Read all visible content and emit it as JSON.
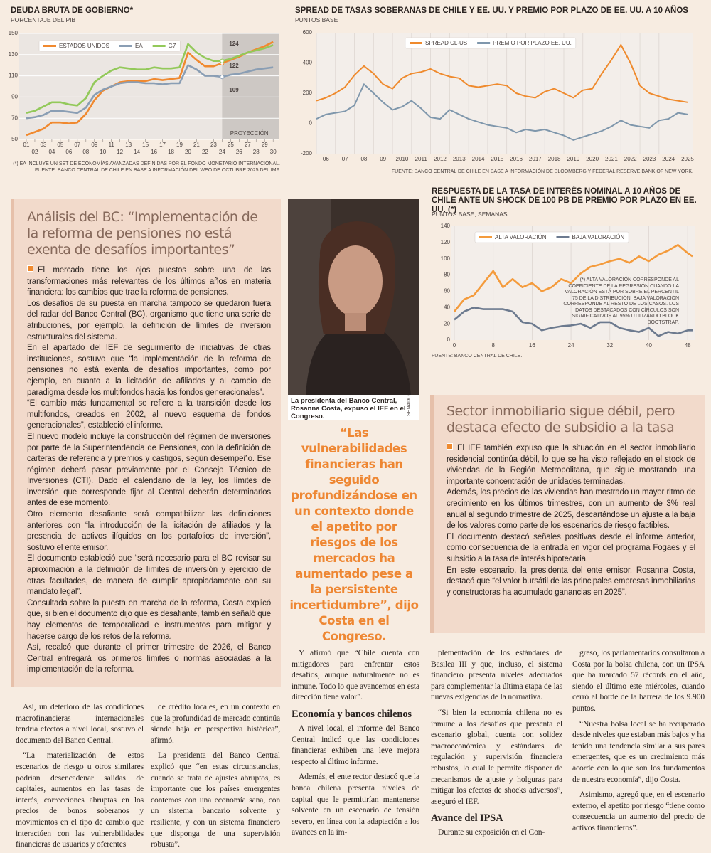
{
  "charts": [
    {
      "type": "line",
      "title": "DEUDA BRUTA DE GOBIERNO*",
      "subtitle": "PORCENTAJE DEL PIB",
      "x": [
        2001,
        2002,
        2003,
        2004,
        2005,
        2006,
        2007,
        2008,
        2009,
        2010,
        2011,
        2012,
        2013,
        2014,
        2015,
        2016,
        2017,
        2018,
        2019,
        2020,
        2021,
        2022,
        2023,
        2024,
        2025,
        2026,
        2027,
        2028,
        2029,
        2030
      ],
      "series": [
        {
          "name": "ESTADOS UNIDOS",
          "color": "#f0892f",
          "values": [
            54,
            57,
            60,
            66,
            66,
            65,
            66,
            74,
            87,
            96,
            100,
            104,
            105,
            105,
            105,
            107,
            106,
            107,
            108,
            132,
            125,
            119,
            119,
            122,
            125,
            128,
            132,
            135,
            138,
            142
          ],
          "value_labels": [
            null,
            null,
            null,
            null,
            null,
            null,
            null,
            null,
            null,
            null,
            null,
            null,
            null,
            null,
            null,
            null,
            null,
            null,
            null,
            null,
            null,
            null,
            null,
            "122",
            null,
            null,
            null,
            null,
            null,
            null
          ]
        },
        {
          "name": "EA",
          "color": "#8a9eb4",
          "values": [
            70,
            71,
            73,
            77,
            77,
            76,
            75,
            80,
            92,
            97,
            100,
            103,
            104,
            104,
            103,
            103,
            102,
            103,
            103,
            120,
            116,
            110,
            110,
            109,
            111,
            112,
            114,
            116,
            117,
            118
          ],
          "value_labels": [
            null,
            null,
            null,
            null,
            null,
            null,
            null,
            null,
            null,
            null,
            null,
            null,
            null,
            null,
            null,
            null,
            null,
            null,
            null,
            null,
            null,
            null,
            null,
            "109",
            null,
            null,
            null,
            null,
            null,
            null
          ]
        },
        {
          "name": "G7",
          "color": "#93c95a",
          "values": [
            75,
            77,
            81,
            85,
            85,
            83,
            82,
            89,
            104,
            110,
            115,
            118,
            117,
            116,
            116,
            118,
            117,
            117,
            118,
            140,
            132,
            127,
            124,
            124,
            126,
            129,
            132,
            134,
            136,
            139
          ],
          "value_labels": [
            null,
            null,
            null,
            null,
            null,
            null,
            null,
            null,
            null,
            null,
            null,
            null,
            null,
            null,
            null,
            null,
            null,
            null,
            null,
            null,
            null,
            null,
            null,
            "124",
            null,
            null,
            null,
            null,
            null,
            null
          ]
        }
      ],
      "xlim": [
        2000.5,
        2030.4
      ],
      "xticks": [
        {
          "value": 2001,
          "label": "01"
        },
        {
          "value": 2002,
          "label": "02"
        },
        {
          "value": 2003,
          "label": "03"
        },
        {
          "value": 2004,
          "label": "04"
        },
        {
          "value": 2005,
          "label": "05"
        },
        {
          "value": 2006,
          "label": "06"
        },
        {
          "value": 2007,
          "label": "07"
        },
        {
          "value": 2008,
          "label": "08"
        },
        {
          "value": 2009,
          "label": "09"
        },
        {
          "value": 2010,
          "label": "10"
        },
        {
          "value": 2011,
          "label": "11"
        },
        {
          "value": 2012,
          "label": "12"
        },
        {
          "value": 2013,
          "label": "13"
        },
        {
          "value": 2014,
          "label": "14"
        },
        {
          "value": 2015,
          "label": "15"
        },
        {
          "value": 2016,
          "label": "16"
        },
        {
          "value": 2017,
          "label": "17"
        },
        {
          "value": 2018,
          "label": "18"
        },
        {
          "value": 2019,
          "label": "19"
        },
        {
          "value": 2020,
          "label": "20"
        },
        {
          "value": 2021,
          "label": "21"
        },
        {
          "value": 2022,
          "label": "22"
        },
        {
          "value": 2023,
          "label": "23"
        },
        {
          "value": 2024,
          "label": "24"
        },
        {
          "value": 2025,
          "label": "25"
        },
        {
          "value": 2026,
          "label": "26"
        },
        {
          "value": 2027,
          "label": "27"
        },
        {
          "value": 2028,
          "label": "28"
        },
        {
          "value": 2029,
          "label": "29"
        },
        {
          "value": 2030,
          "label": "30"
        }
      ],
      "ylim": [
        50,
        150
      ],
      "yticks": [
        50,
        70,
        90,
        110,
        130,
        150
      ],
      "grid": "y",
      "projection": {
        "label": "PROYECCIÓN",
        "from": 2024
      },
      "footnote": "(*) EA INCLUYE UN SET DE ECONOMÍAS AVANZADAS DEFINIDAS POR EL FONDO MONETARIO INTERNACIONAL.",
      "source": "FUENTE: BANCO CENTRAL DE CHILE EN BASE A INFORMACIÓN DEL WEO DE OCTUBRE 2025 DEL IMF."
    },
    {
      "type": "line",
      "title": "SPREAD DE TASAS SOBERANAS DE CHILE Y EE. UU. Y PREMIO POR PLAZO DE EE. UU. A 10 AÑOS",
      "subtitle": "PUNTOS BASE",
      "x": [
        2006,
        2006.5,
        2007,
        2007.5,
        2008,
        2008.5,
        2009,
        2009.5,
        2010,
        2010.5,
        2011,
        2011.5,
        2012,
        2012.5,
        2013,
        2013.5,
        2014,
        2014.5,
        2015,
        2015.5,
        2016,
        2016.5,
        2017,
        2017.5,
        2018,
        2018.5,
        2019,
        2019.5,
        2020,
        2020.5,
        2021,
        2021.5,
        2022,
        2022.5,
        2023,
        2023.5,
        2024,
        2024.5,
        2025,
        2025.5
      ],
      "series": [
        {
          "name": "SPREAD CL-US",
          "color": "#ef8a2d",
          "values": [
            150,
            170,
            200,
            240,
            320,
            380,
            330,
            260,
            230,
            300,
            330,
            340,
            360,
            330,
            310,
            300,
            250,
            240,
            250,
            260,
            250,
            200,
            180,
            170,
            210,
            230,
            200,
            170,
            220,
            230,
            330,
            420,
            520,
            400,
            250,
            200,
            180,
            160,
            150,
            140
          ]
        },
        {
          "name": "PREMIO POR PLAZO EE. UU.",
          "color": "#7f97ac",
          "values": [
            30,
            60,
            70,
            80,
            120,
            260,
            200,
            140,
            90,
            110,
            150,
            100,
            40,
            30,
            90,
            60,
            30,
            10,
            -10,
            -20,
            -30,
            -60,
            -40,
            -50,
            -40,
            -60,
            -80,
            -110,
            -90,
            -70,
            -50,
            -20,
            20,
            -10,
            -20,
            -30,
            20,
            30,
            70,
            60
          ]
        }
      ],
      "xlim": [
        2006,
        2025.8
      ],
      "xticks": [
        {
          "value": 2006,
          "label": "06"
        },
        {
          "value": 2007,
          "label": "07"
        },
        {
          "value": 2008,
          "label": "08"
        },
        {
          "value": 2009,
          "label": "09"
        },
        2010,
        2011,
        2012,
        2013,
        2014,
        2015,
        2016,
        2017,
        2018,
        2019,
        2020,
        2021,
        2022,
        2023,
        2024,
        2025
      ],
      "ylim": [
        -200,
        600
      ],
      "yticks": [
        -200,
        0,
        200,
        400,
        600
      ],
      "grid": "x",
      "source": "FUENTE: BANCO CENTRAL DE CHILE EN BASE A INFORMACIÓN DE BLOOMBERG Y FEDERAL RESERVE BANK OF NEW YORK."
    },
    {
      "type": "line",
      "title": "RESPUESTA DE LA TASA DE INTERÉS NOMINAL A 10 AÑOS DE CHILE ANTE UN SHOCK DE 100 PB DE PREMIO POR PLAZO EN EE. UU. (*)",
      "subtitle": "PUNTOS BASE, SEMANAS",
      "x": [
        0,
        2,
        4,
        6,
        8,
        10,
        12,
        14,
        16,
        18,
        20,
        22,
        24,
        26,
        28,
        30,
        32,
        34,
        36,
        38,
        40,
        42,
        44,
        46,
        48,
        49
      ],
      "series": [
        {
          "name": "ALTA VALORACIÓN",
          "color": "#f49b3c",
          "values": [
            35,
            50,
            55,
            70,
            85,
            65,
            75,
            65,
            70,
            60,
            65,
            75,
            70,
            82,
            90,
            93,
            97,
            100,
            95,
            103,
            97,
            105,
            110,
            117,
            107,
            103
          ]
        },
        {
          "name": "BAJA VALORACIÓN",
          "color": "#6c7a8f",
          "values": [
            25,
            35,
            40,
            38,
            38,
            38,
            35,
            22,
            20,
            12,
            15,
            17,
            18,
            20,
            15,
            22,
            22,
            15,
            12,
            10,
            15,
            5,
            10,
            8,
            12,
            12
          ]
        }
      ],
      "xlim": [
        0,
        49
      ],
      "xticks": [
        0,
        8,
        16,
        24,
        32,
        40,
        48
      ],
      "ylim": [
        0,
        140
      ],
      "yticks": [
        0,
        20,
        40,
        60,
        80,
        100,
        120,
        140
      ],
      "grid": "x",
      "note": "(*) ALTA VALORACIÓN CORRESPONDE AL COEFICIENTE DE LA REGRESIÓN CUANDO LA VALORACIÓN ESTÁ POR SOBRE EL PERCENTIL 75 DE LA DISTRIBUCIÓN. BAJA VALORACIÓN CORRESPONDE AL RESTO DE LOS CASOS. LOS DATOS DESTACADOS CON CÍRCULOS SON SIGNIFICATIVOS AL 95% UTILIZANDO BLOCK BOOTSTRAP.",
      "source": "FUENTE: BANCO CENTRAL DE CHILE."
    }
  ],
  "article_pensiones": {
    "title": "Análisis del BC: “Implementación de la reforma de pensiones no está exenta de desafíos importantes”",
    "paragraphs": [
      "El mercado tiene los ojos puestos sobre una de las transformaciones más relevantes de los últimos años en materia financiera: los cambios que trae la reforma de pensiones.",
      "Los desafíos de su puesta en marcha tampoco se quedaron fuera del radar del Banco Central (BC), organismo que tiene una serie de atribuciones, por ejemplo, la definición de límites de inversión estructurales del sistema.",
      "En el apartado del IEF de seguimiento de iniciativas de otras instituciones, sostuvo que “la implementación de la reforma de pensiones no está exenta de desafíos importantes, como por ejemplo, en cuanto a la licitación de afiliados y al cambio de paradigma desde los multifondos hacia los fondos generacionales”.",
      "“El cambio más fundamental se refiere a la transición desde los multifondos, creados en 2002, al nuevo esquema de fondos generacionales”, estableció el informe.",
      "El nuevo modelo incluye la construcción del régimen de inversiones por parte de la Superintendencia de Pensiones, con la definición de carteras de referencia y premios y castigos, según desempeño. Ese régimen deberá pasar previamente por el Consejo Técnico de Inversiones (CTI). Dado el calendario de la ley, los límites de inversión que corresponde fijar al Central deberán determinarlos antes de ese momento.",
      "Otro elemento desafiante será compatibilizar las definiciones anteriores con “la introducción de la licitación de afiliados y la presencia de activos ilíquidos en los portafolios de inversión”, sostuvo el ente emisor.",
      "El documento estableció que “será necesario para el BC revisar su aproximación a la definición de límites de inversión y ejercicio de otras facultades, de manera de cumplir apropiadamente con su mandato legal”.",
      "Consultada sobre la puesta en marcha de la reforma, Costa explicó que, si bien el documento dijo que es desafiante, también señaló que hay elementos de temporalidad e instrumentos para mitigar y hacerse cargo de los retos de la reforma.",
      "Así, recalcó que durante el primer trimestre de 2026, el Banco Central entregará los primeros límites o normas asociadas a la implementación de la reforma."
    ]
  },
  "photo": {
    "caption": "La presidenta del Banco Central, Rosanna Costa, expuso el IEF en el Congreso.",
    "credit": "SENADO"
  },
  "quote": "“Las vulnerabilidades financieras han seguido profundizándose en un contexto donde el apetito por riesgos de los mercados ha aumentado pese a la persistente incertidumbre”, dijo Costa en el Congreso.",
  "article_inmobiliario": {
    "title": "Sector inmobiliario sigue débil, pero destaca efecto de subsidio a la tasa",
    "paragraphs": [
      "El IEF también expuso que la situación en el sector inmobiliario residencial continúa débil, lo que se ha visto reflejado en el stock de viviendas de la Región Metropolitana, que sigue mostrando una importante concentración de unidades terminadas.",
      "Además, los precios de las viviendas han mostrado un mayor ritmo de crecimiento en los últimos trimestres, con un aumento de 3% real anual al segundo trimestre de 2025, descartándose un ajuste a la baja de los valores como parte de los escenarios de riesgo factibles.",
      "El documento destacó señales positivas desde el informe anterior, como consecuencia de la entrada en vigor del programa Fogaes y el subsidio a la tasa de interés hipotecaria.",
      "En este escenario, la presidenta del ente emisor, Rosanna Costa, destacó que “el valor bursátil de las principales empresas inmobiliarias y constructoras ha acumulado ganancias en 2025”."
    ]
  },
  "columns": [
    [
      {
        "text": "Así, un deterioro de las condiciones macrofinancieras internacionales tendría efectos a nivel local, sostuvo el documento del Banco Central."
      },
      {
        "text": "“La materialización de estos escenarios de riesgo u otros similares podrían desencadenar salidas de capitales, aumentos en las tasas de interés, correcciones abruptas en los precios de bonos soberanos y movimientos en el tipo de cambio que interactúen con las vulnerabilidades financieras de usuarios y oferentes"
      }
    ],
    [
      {
        "text": "de crédito locales, en un contexto en que la profundidad de mercado continúa siendo baja en perspectiva histórica”, afirmó."
      },
      {
        "text": "La presidenta del Banco Central explicó que “en estas circunstancias, cuando se trata de ajustes abruptos, es importante que los países emergentes contemos con una economía sana, con un sistema bancario solvente y resiliente, y con un sistema financiero que disponga de una supervisión robusta”."
      }
    ],
    [
      {
        "text": "Y afirmó que “Chile cuenta con mitigadores para enfrentar estos desafíos, aunque naturalmente no es inmune. Todo lo que avancemos en esta dirección tiene valor”."
      },
      {
        "heading": "Economía y bancos chilenos"
      },
      {
        "text": "A nivel local, el informe del Banco Central indicó que las condiciones financieras exhiben una leve mejora respecto al último informe."
      },
      {
        "text": "Además, el ente rector destacó que la banca chilena presenta niveles de capital que le permitirían mantenerse solvente en un escenario de tensión severo, en línea con la adaptación a los avances en la im-"
      }
    ],
    [
      {
        "text": "plementación de los estándares de Basilea III y que, incluso, el sistema financiero presenta niveles adecuados para complementar la última etapa de las nuevas exigencias de la normativa."
      },
      {
        "text": "“Si bien la economía chilena no es inmune a los desafíos que presenta el escenario global, cuenta con solidez macroeconómica y estándares de regulación y supervisión financiera robustos, lo cual le permite disponer de mecanismos de ajuste y holguras para mitigar los efectos de shocks adversos”, aseguró el IEF."
      },
      {
        "heading": "Avance del IPSA"
      },
      {
        "text": "Durante su exposición en el Con-"
      }
    ],
    [
      {
        "text": "greso, los parlamentarios consultaron a Costa por la bolsa chilena, con un IPSA que ha marcado 57 récords en el año, siendo el último este miércoles, cuando cerró al borde de la barrera de los 9.900 puntos."
      },
      {
        "text": "“Nuestra bolsa local se ha recuperado desde niveles que estaban más bajos y ha tenido una tendencia similar a sus pares emergentes, que es un crecimiento más acorde con lo que son los fundamentos de nuestra economía”, dijo Costa."
      },
      {
        "text": "Asimismo, agregó que, en el escenario externo, el apetito por riesgo “tiene como consecuencia un aumento del precio de activos financieros”."
      }
    ]
  ]
}
